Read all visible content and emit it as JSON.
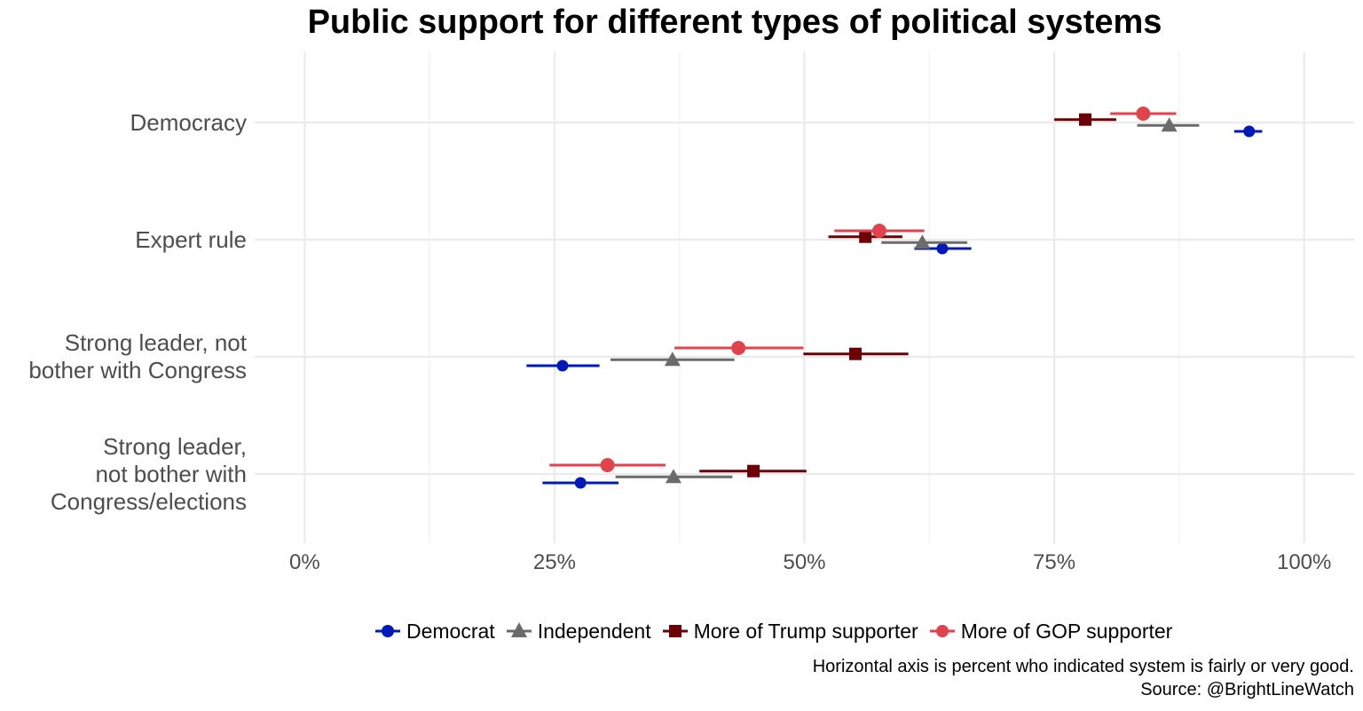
{
  "title": "Public support for different types of political systems",
  "chart_data": {
    "type": "scatter",
    "title": "Public support for different types of political systems",
    "xlim": [
      -0.05,
      1.05
    ],
    "x_ticks": [
      0,
      0.25,
      0.5,
      0.75,
      1.0
    ],
    "x_tick_labels": [
      "0%",
      "25%",
      "50%",
      "75%",
      "100%"
    ],
    "categories": [
      "Democracy",
      "Expert rule",
      "Strong leader, not\nbother with Congress",
      "Strong leader,\nnot bother with\nCongress/elections"
    ],
    "grid": true,
    "legend_position": "bottom",
    "series": [
      {
        "name": "Democrat",
        "color": "#0019b8",
        "shape": "circle",
        "values": [
          {
            "estimate": 0.945,
            "low": 0.93,
            "high": 0.958
          },
          {
            "estimate": 0.638,
            "low": 0.61,
            "high": 0.667
          },
          {
            "estimate": 0.258,
            "low": 0.222,
            "high": 0.295
          },
          {
            "estimate": 0.276,
            "low": 0.238,
            "high": 0.314
          }
        ]
      },
      {
        "name": "Independent",
        "color": "#6b6b6b",
        "shape": "triangle",
        "values": [
          {
            "estimate": 0.865,
            "low": 0.833,
            "high": 0.895
          },
          {
            "estimate": 0.618,
            "low": 0.577,
            "high": 0.663
          },
          {
            "estimate": 0.368,
            "low": 0.306,
            "high": 0.43
          },
          {
            "estimate": 0.369,
            "low": 0.311,
            "high": 0.428
          }
        ]
      },
      {
        "name": "More of Trump supporter",
        "color": "#6b0006",
        "shape": "square",
        "values": [
          {
            "estimate": 0.781,
            "low": 0.75,
            "high": 0.812
          },
          {
            "estimate": 0.561,
            "low": 0.524,
            "high": 0.598
          },
          {
            "estimate": 0.551,
            "low": 0.499,
            "high": 0.604
          },
          {
            "estimate": 0.449,
            "low": 0.395,
            "high": 0.502
          }
        ]
      },
      {
        "name": "More of GOP supporter",
        "color": "#e0434c",
        "shape": "circle",
        "values": [
          {
            "estimate": 0.839,
            "low": 0.806,
            "high": 0.872
          },
          {
            "estimate": 0.575,
            "low": 0.53,
            "high": 0.62
          },
          {
            "estimate": 0.434,
            "low": 0.37,
            "high": 0.499
          },
          {
            "estimate": 0.303,
            "low": 0.245,
            "high": 0.361
          }
        ]
      }
    ]
  },
  "caption": {
    "line1": "Horizontal axis is percent who indicated system is fairly or very good.",
    "line2": "Source: @BrightLineWatch"
  }
}
